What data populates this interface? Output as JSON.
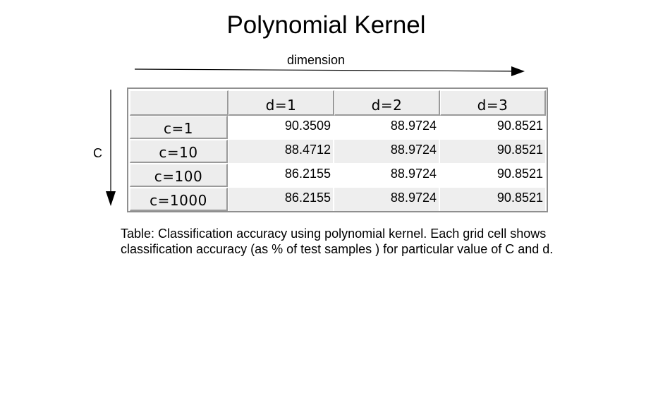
{
  "title": "Polynomial Kernel",
  "axes": {
    "horizontal_label": "dimension",
    "vertical_label": "C"
  },
  "table": {
    "columns": [
      "d=1",
      "d=2",
      "d=3"
    ],
    "rows": [
      {
        "label": "c=1",
        "values": [
          "90.3509",
          "88.9724",
          "90.8521"
        ]
      },
      {
        "label": "c=10",
        "values": [
          "88.4712",
          "88.9724",
          "90.8521"
        ]
      },
      {
        "label": "c=100",
        "values": [
          "86.2155",
          "88.9724",
          "90.8521"
        ]
      },
      {
        "label": "c=1000",
        "values": [
          "86.2155",
          "88.9724",
          "90.8521"
        ]
      }
    ]
  },
  "caption": "Table: Classification accuracy using polynomial kernel. Each grid cell shows classification accuracy (as % of test samples ) for particular value of C and d."
}
